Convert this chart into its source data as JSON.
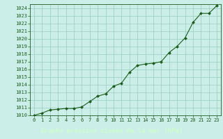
{
  "x": [
    0,
    1,
    2,
    3,
    4,
    5,
    6,
    7,
    8,
    9,
    10,
    11,
    12,
    13,
    14,
    15,
    16,
    17,
    18,
    19,
    20,
    21,
    22,
    23
  ],
  "y": [
    1010.0,
    1010.3,
    1010.7,
    1010.8,
    1010.9,
    1010.9,
    1011.1,
    1011.8,
    1012.5,
    1012.8,
    1013.8,
    1014.2,
    1015.6,
    1016.5,
    1016.7,
    1016.8,
    1017.0,
    1018.2,
    1019.0,
    1020.1,
    1022.1,
    1023.3,
    1023.3,
    1024.3
  ],
  "ylim": [
    1010,
    1024.5
  ],
  "yticks": [
    1010,
    1011,
    1012,
    1013,
    1014,
    1015,
    1016,
    1017,
    1018,
    1019,
    1020,
    1021,
    1022,
    1023,
    1024
  ],
  "xlim": [
    -0.5,
    23.5
  ],
  "xticks": [
    0,
    1,
    2,
    3,
    4,
    5,
    6,
    7,
    8,
    9,
    10,
    11,
    12,
    13,
    14,
    15,
    16,
    17,
    18,
    19,
    20,
    21,
    22,
    23
  ],
  "line_color": "#1a5c1a",
  "marker_color": "#1a5c1a",
  "bg_color": "#cceee8",
  "grid_color": "#99ccbb",
  "label_bg_color": "#1a5c1a",
  "xlabel": "Graphe pression niveau de la mer (hPa)",
  "xlabel_color": "#ccffcc",
  "tick_color": "#1a5c1a",
  "tick_fontsize": 5.0,
  "xlabel_fontsize": 6.5,
  "marker": "D",
  "marker_size": 2.0,
  "line_width": 0.8
}
